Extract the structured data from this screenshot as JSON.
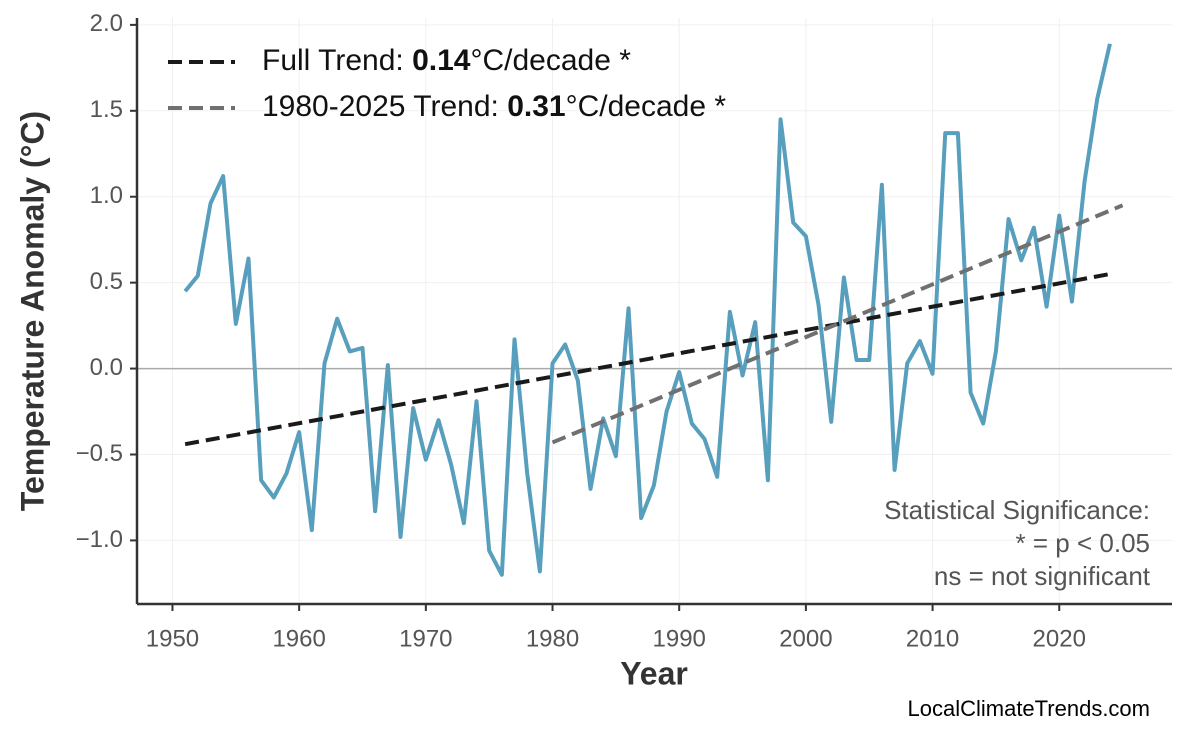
{
  "chart_data": {
    "type": "line",
    "x_label": "Year",
    "y_label": "Temperature Anomaly (°C)",
    "x": [
      1951,
      1952,
      1953,
      1954,
      1955,
      1956,
      1957,
      1958,
      1959,
      1960,
      1961,
      1962,
      1963,
      1964,
      1965,
      1966,
      1967,
      1968,
      1969,
      1970,
      1971,
      1972,
      1973,
      1974,
      1975,
      1976,
      1977,
      1978,
      1979,
      1980,
      1981,
      1982,
      1983,
      1984,
      1985,
      1986,
      1987,
      1988,
      1989,
      1990,
      1991,
      1992,
      1993,
      1994,
      1995,
      1996,
      1997,
      1998,
      1999,
      2000,
      2001,
      2002,
      2003,
      2004,
      2005,
      2006,
      2007,
      2008,
      2009,
      2010,
      2011,
      2012,
      2013,
      2014,
      2015,
      2016,
      2017,
      2018,
      2019,
      2020,
      2021,
      2022,
      2023,
      2024
    ],
    "series": [
      {
        "color": "#579fbd",
        "values": [
          0.45,
          0.54,
          0.96,
          1.12,
          0.26,
          0.64,
          -0.65,
          -0.75,
          -0.61,
          -0.37,
          -0.94,
          0.03,
          0.29,
          0.1,
          0.12,
          -0.83,
          0.02,
          -0.98,
          -0.23,
          -0.53,
          -0.3,
          -0.56,
          -0.9,
          -0.19,
          -1.06,
          -1.2,
          0.17,
          -0.61,
          -1.18,
          0.03,
          0.14,
          -0.07,
          -0.7,
          -0.29,
          -0.51,
          0.35,
          -0.87,
          -0.68,
          -0.25,
          -0.02,
          -0.32,
          -0.41,
          -0.63,
          0.33,
          -0.04,
          0.27,
          -0.65,
          1.45,
          0.85,
          0.77,
          0.37,
          -0.31,
          0.53,
          0.05,
          0.05,
          1.07,
          -0.59,
          0.03,
          0.16,
          -0.03,
          1.37,
          1.37,
          -0.14,
          -0.32,
          0.1,
          0.87,
          0.63,
          0.82,
          0.36,
          0.89,
          0.39,
          1.09,
          1.57,
          1.89
        ]
      },
      {
        "name": "Full Trend: ",
        "trend_value": "0.14",
        "trend_suffix": "°C/decade *",
        "color": "#1a1a1a",
        "dashed": true,
        "x": [
          1951,
          2024
        ],
        "values": [
          -0.44,
          0.55
        ]
      },
      {
        "name": "1980-2025 Trend: ",
        "trend_value": "0.31",
        "trend_suffix": "°C/decade *",
        "color": "#707070",
        "dashed": true,
        "x": [
          1980,
          2025
        ],
        "values": [
          -0.43,
          0.95
        ]
      }
    ],
    "xlim": [
      1947.2,
      2028.9
    ],
    "ylim": [
      -1.37,
      2.04
    ],
    "xticks": [
      1950,
      1960,
      1970,
      1980,
      1990,
      2000,
      2010,
      2020
    ],
    "yticks": [
      {
        "value": -1,
        "label": "−1.0"
      },
      {
        "value": -0.5,
        "label": "−0.5"
      },
      {
        "value": 0,
        "label": "0.0"
      },
      {
        "value": 0.5,
        "label": "0.5"
      },
      {
        "value": 1,
        "label": "1.0"
      },
      {
        "value": 1.5,
        "label": "1.5"
      },
      {
        "value": 2,
        "label": "2.0"
      }
    ],
    "hline": 0,
    "grid": true,
    "legend": "upper left",
    "annotation": [
      "Statistical Significance:",
      "* = p < 0.05",
      "ns = not significant"
    ],
    "source": "LocalClimateTrends.com"
  }
}
